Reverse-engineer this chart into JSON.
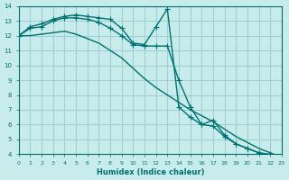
{
  "xlabel": "Humidex (Indice chaleur)",
  "bg_color": "#c8ecec",
  "grid_color": "#a0d0d0",
  "line_color": "#007070",
  "xlim": [
    0,
    23
  ],
  "ylim": [
    4,
    14
  ],
  "xticks": [
    0,
    1,
    2,
    3,
    4,
    5,
    6,
    7,
    8,
    9,
    10,
    11,
    12,
    13,
    14,
    15,
    16,
    17,
    18,
    19,
    20,
    21,
    22,
    23
  ],
  "yticks": [
    4,
    5,
    6,
    7,
    8,
    9,
    10,
    11,
    12,
    13,
    14
  ],
  "curve1_x": [
    0,
    1,
    2,
    3,
    4,
    5,
    6,
    7,
    8,
    9,
    10,
    11,
    12,
    13,
    14,
    15,
    16,
    17,
    18,
    19,
    20,
    21,
    22,
    23
  ],
  "curve1_y": [
    12.0,
    12.6,
    12.8,
    13.1,
    13.3,
    13.4,
    13.3,
    13.2,
    13.1,
    12.5,
    11.5,
    11.4,
    12.6,
    13.8,
    7.2,
    6.5,
    6.0,
    6.3,
    5.3,
    4.7,
    4.4,
    4.1,
    3.9,
    3.8
  ],
  "curve2_x": [
    0,
    1,
    2,
    3,
    4,
    5,
    6,
    7,
    8,
    9,
    10,
    11,
    12,
    13,
    14,
    15,
    16,
    17,
    18,
    19,
    20,
    21,
    22,
    23
  ],
  "curve2_y": [
    12.0,
    12.5,
    12.6,
    13.0,
    13.2,
    13.2,
    13.1,
    12.9,
    12.5,
    12.0,
    11.4,
    11.3,
    11.3,
    11.3,
    9.0,
    7.2,
    6.0,
    5.9,
    5.2,
    4.7,
    4.4,
    4.1,
    4.0,
    3.8
  ],
  "curve3_x": [
    0,
    1,
    2,
    3,
    4,
    5,
    6,
    7,
    8,
    9,
    10,
    11,
    12,
    13,
    14,
    15,
    16,
    17,
    18,
    19,
    20,
    21,
    22,
    23
  ],
  "curve3_y": [
    12.0,
    12.0,
    12.1,
    12.2,
    12.3,
    12.1,
    11.8,
    11.5,
    11.0,
    10.5,
    9.8,
    9.1,
    8.5,
    8.0,
    7.5,
    7.0,
    6.6,
    6.2,
    5.7,
    5.2,
    4.8,
    4.4,
    4.1,
    3.8
  ]
}
